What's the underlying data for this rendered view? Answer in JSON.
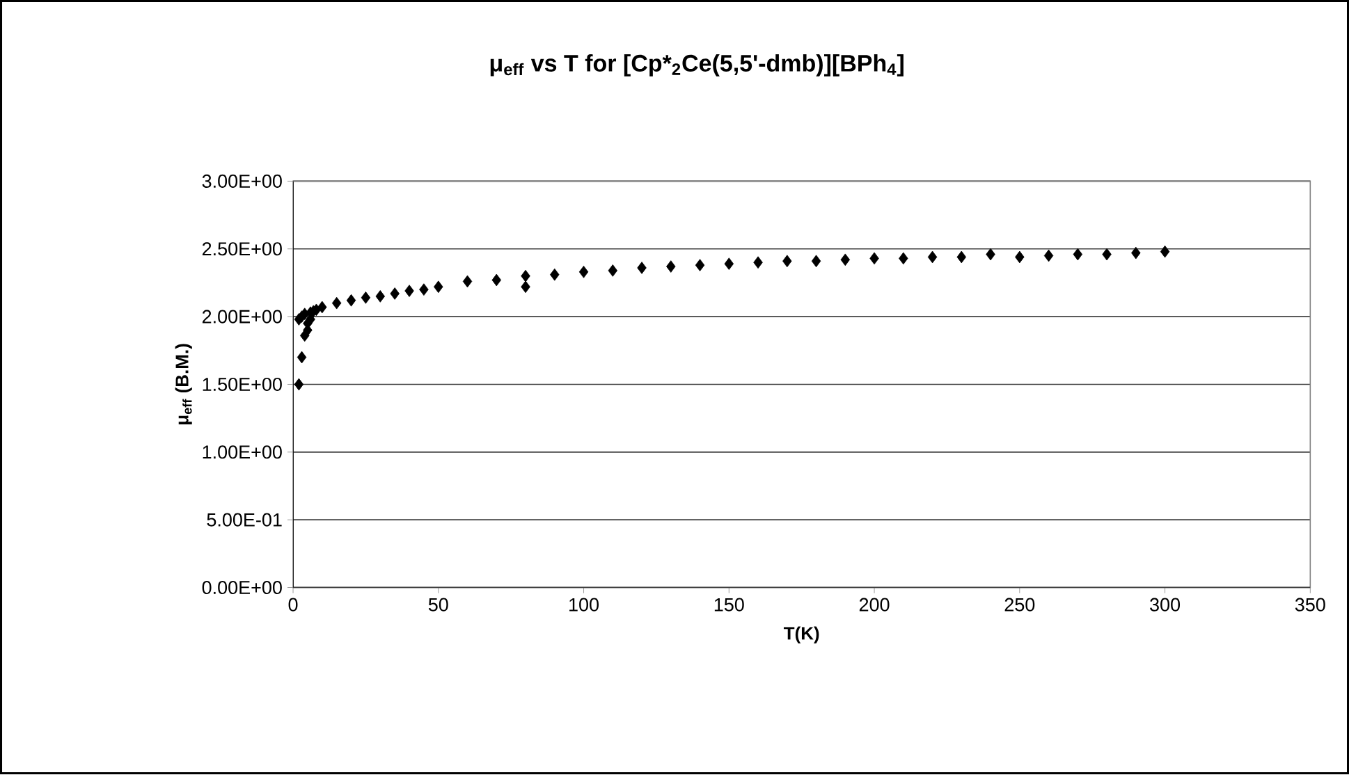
{
  "chart_data": {
    "type": "scatter",
    "title": "μ$_{eff}$ vs T for [Cp*$_{2}$Ce(5,5'-dmb)][BPh$_{4}$]",
    "xlabel": "T(K)",
    "ylabel": "μ$_{eff}$ (B.M.)",
    "x": [
      2,
      3,
      4,
      5,
      5,
      6,
      2,
      3,
      4,
      6,
      7,
      8,
      10,
      15,
      20,
      25,
      30,
      35,
      40,
      45,
      50,
      60,
      70,
      80,
      80,
      90,
      100,
      110,
      120,
      130,
      140,
      150,
      160,
      170,
      180,
      190,
      200,
      210,
      220,
      230,
      240,
      250,
      260,
      270,
      280,
      290,
      300
    ],
    "values": [
      1.5,
      1.7,
      1.86,
      1.9,
      1.95,
      1.98,
      1.98,
      2.0,
      2.02,
      2.03,
      2.04,
      2.05,
      2.07,
      2.1,
      2.12,
      2.14,
      2.15,
      2.17,
      2.19,
      2.2,
      2.22,
      2.26,
      2.27,
      2.3,
      2.22,
      2.31,
      2.33,
      2.34,
      2.36,
      2.37,
      2.38,
      2.39,
      2.4,
      2.41,
      2.41,
      2.42,
      2.43,
      2.43,
      2.44,
      2.44,
      2.46,
      2.44,
      2.45,
      2.46,
      2.46,
      2.47,
      2.48
    ],
    "color": "#000000",
    "marker": "diamond",
    "grid": "y",
    "xlim": [
      0,
      350
    ],
    "xticks": [
      0,
      50,
      100,
      150,
      200,
      250,
      300,
      350
    ],
    "ylim": [
      0,
      3
    ],
    "yticks": [
      {
        "value": 0,
        "label": "0.00E+00"
      },
      {
        "value": 0.5,
        "label": "5.00E-01"
      },
      {
        "value": 1,
        "label": "1.00E+00"
      },
      {
        "value": 1.5,
        "label": "1.50E+00"
      },
      {
        "value": 2,
        "label": "2.00E+00"
      },
      {
        "value": 2.5,
        "label": "2.50E+00"
      },
      {
        "value": 3,
        "label": "3.00E+00"
      }
    ]
  }
}
